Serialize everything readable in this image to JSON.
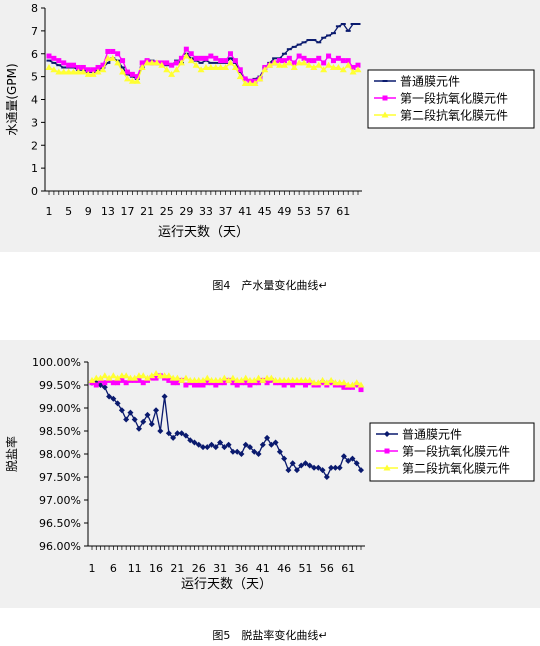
{
  "figures": [
    {
      "caption": "图4　产水量变化曲线↵"
    },
    {
      "caption": "图5　脱盐率变化曲线↵"
    }
  ],
  "colors": {
    "series_1": "#0a1a6e",
    "series_2": "#ff00ff",
    "series_3": "#ffff33"
  },
  "chart_data": [
    {
      "type": "line",
      "title": "",
      "xlabel": "运行天数（天）",
      "ylabel": "水通量(GPM)",
      "x": [
        1,
        2,
        3,
        4,
        5,
        6,
        7,
        8,
        9,
        10,
        11,
        12,
        13,
        14,
        15,
        16,
        17,
        18,
        19,
        20,
        21,
        22,
        23,
        24,
        25,
        26,
        27,
        28,
        29,
        30,
        31,
        32,
        33,
        34,
        35,
        36,
        37,
        38,
        39,
        40,
        41,
        42,
        43,
        44,
        45,
        46,
        47,
        48,
        49,
        50,
        51,
        52,
        53,
        54,
        55,
        56,
        57,
        58,
        59,
        60,
        61,
        62,
        63,
        64
      ],
      "xticks": [
        "1",
        "5",
        "9",
        "13",
        "17",
        "21",
        "25",
        "29",
        "33",
        "37",
        "41",
        "45",
        "49",
        "53",
        "57",
        "61"
      ],
      "yticks": [
        "0",
        "1",
        "2",
        "3",
        "4",
        "5",
        "6",
        "7",
        "8"
      ],
      "ylim": [
        0,
        8
      ],
      "legend_position": "right",
      "grid": false,
      "series": [
        {
          "name": "普通膜元件",
          "marker": "dash",
          "values": [
            5.7,
            5.6,
            5.5,
            5.4,
            5.4,
            5.4,
            5.3,
            5.3,
            5.2,
            5.2,
            5.3,
            5.4,
            5.6,
            5.8,
            5.7,
            5.4,
            5.1,
            5.0,
            4.9,
            5.4,
            5.7,
            5.7,
            5.6,
            5.6,
            5.5,
            5.5,
            5.7,
            5.6,
            6.0,
            5.8,
            5.7,
            5.6,
            5.7,
            5.6,
            5.6,
            5.6,
            5.6,
            5.8,
            5.6,
            5.2,
            4.9,
            4.8,
            4.9,
            5.0,
            5.4,
            5.6,
            5.8,
            5.8,
            6.0,
            6.2,
            6.3,
            6.4,
            6.5,
            6.6,
            6.6,
            6.5,
            6.7,
            6.8,
            6.9,
            7.2,
            7.3,
            7.0,
            7.3,
            7.3
          ]
        },
        {
          "name": "第一段抗氧化膜元件",
          "marker": "square",
          "values": [
            5.9,
            5.8,
            5.7,
            5.6,
            5.5,
            5.5,
            5.4,
            5.4,
            5.3,
            5.3,
            5.4,
            5.5,
            6.1,
            6.1,
            6.0,
            5.7,
            5.2,
            5.1,
            5.0,
            5.6,
            5.7,
            5.6,
            5.6,
            5.6,
            5.6,
            5.5,
            5.6,
            5.8,
            6.2,
            6.0,
            5.8,
            5.8,
            5.8,
            5.9,
            5.8,
            5.7,
            5.7,
            6.0,
            5.7,
            5.3,
            4.9,
            4.8,
            4.8,
            4.9,
            5.4,
            5.5,
            5.6,
            5.7,
            5.7,
            5.8,
            5.6,
            5.9,
            5.8,
            5.7,
            5.7,
            5.8,
            5.6,
            5.9,
            5.7,
            5.8,
            5.7,
            5.7,
            5.4,
            5.5
          ]
        },
        {
          "name": "第二段抗氧化膜元件",
          "marker": "triangle",
          "values": [
            5.4,
            5.3,
            5.2,
            5.2,
            5.2,
            5.2,
            5.2,
            5.2,
            5.1,
            5.1,
            5.2,
            5.3,
            5.8,
            5.8,
            5.6,
            5.2,
            4.9,
            4.8,
            4.8,
            5.4,
            5.6,
            5.6,
            5.6,
            5.5,
            5.3,
            5.1,
            5.3,
            5.6,
            5.9,
            5.7,
            5.5,
            5.3,
            5.4,
            5.4,
            5.4,
            5.4,
            5.4,
            5.6,
            5.4,
            5.0,
            4.7,
            4.7,
            4.7,
            4.9,
            5.3,
            5.5,
            5.6,
            5.5,
            5.5,
            5.6,
            5.4,
            5.6,
            5.6,
            5.5,
            5.4,
            5.5,
            5.3,
            5.5,
            5.4,
            5.4,
            5.3,
            5.5,
            5.2,
            5.3
          ]
        }
      ]
    },
    {
      "type": "line",
      "title": "",
      "xlabel": "运行天数（天）",
      "ylabel": "脱盐率",
      "x": [
        1,
        2,
        3,
        4,
        5,
        6,
        7,
        8,
        9,
        10,
        11,
        12,
        13,
        14,
        15,
        16,
        17,
        18,
        19,
        20,
        21,
        22,
        23,
        24,
        25,
        26,
        27,
        28,
        29,
        30,
        31,
        32,
        33,
        34,
        35,
        36,
        37,
        38,
        39,
        40,
        41,
        42,
        43,
        44,
        45,
        46,
        47,
        48,
        49,
        50,
        51,
        52,
        53,
        54,
        55,
        56,
        57,
        58,
        59,
        60,
        61,
        62,
        63,
        64
      ],
      "xticks": [
        "1",
        "6",
        "11",
        "16",
        "21",
        "26",
        "31",
        "36",
        "41",
        "46",
        "51",
        "56",
        "61"
      ],
      "yticks": [
        "96.00%",
        "96.50%",
        "97.00%",
        "97.50%",
        "98.00%",
        "98.50%",
        "99.00%",
        "99.50%",
        "100.00%"
      ],
      "ylim": [
        96,
        100
      ],
      "legend_position": "right",
      "grid": false,
      "series": [
        {
          "name": "普通膜元件",
          "marker": "diamond",
          "values": [
            99.55,
            99.55,
            99.5,
            99.45,
            99.25,
            99.2,
            99.1,
            98.95,
            98.75,
            98.9,
            98.75,
            98.55,
            98.7,
            98.85,
            98.65,
            98.95,
            98.5,
            99.25,
            98.45,
            98.35,
            98.45,
            98.45,
            98.4,
            98.3,
            98.25,
            98.2,
            98.15,
            98.15,
            98.2,
            98.15,
            98.25,
            98.15,
            98.2,
            98.05,
            98.05,
            98.0,
            98.2,
            98.15,
            98.05,
            98.0,
            98.2,
            98.35,
            98.2,
            98.25,
            98.05,
            97.9,
            97.65,
            97.8,
            97.65,
            97.75,
            97.8,
            97.75,
            97.7,
            97.7,
            97.65,
            97.5,
            97.7,
            97.7,
            97.7,
            97.95,
            97.85,
            97.9,
            97.8,
            97.65
          ]
        },
        {
          "name": "第一段抗氧化膜元件",
          "marker": "square",
          "values": [
            99.55,
            99.5,
            99.6,
            99.55,
            99.6,
            99.55,
            99.55,
            99.6,
            99.55,
            99.6,
            99.6,
            99.6,
            99.55,
            99.6,
            99.65,
            99.65,
            99.7,
            99.65,
            99.6,
            99.55,
            99.55,
            99.6,
            99.5,
            99.55,
            99.5,
            99.5,
            99.5,
            99.55,
            99.55,
            99.5,
            99.55,
            99.55,
            99.6,
            99.55,
            99.5,
            99.55,
            99.55,
            99.5,
            99.55,
            99.55,
            99.6,
            99.55,
            99.6,
            99.55,
            99.55,
            99.5,
            99.55,
            99.5,
            99.55,
            99.55,
            99.5,
            99.55,
            99.5,
            99.5,
            99.55,
            99.5,
            99.55,
            99.5,
            99.5,
            99.45,
            99.45,
            99.45,
            99.5,
            99.4
          ]
        },
        {
          "name": "第二段抗氧化膜元件",
          "marker": "triangle",
          "values": [
            99.6,
            99.65,
            99.65,
            99.7,
            99.65,
            99.7,
            99.65,
            99.7,
            99.7,
            99.65,
            99.65,
            99.7,
            99.7,
            99.65,
            99.7,
            99.75,
            99.7,
            99.7,
            99.7,
            99.65,
            99.65,
            99.6,
            99.65,
            99.6,
            99.6,
            99.6,
            99.6,
            99.65,
            99.6,
            99.6,
            99.6,
            99.65,
            99.6,
            99.65,
            99.6,
            99.6,
            99.65,
            99.6,
            99.6,
            99.65,
            99.6,
            99.65,
            99.65,
            99.6,
            99.6,
            99.6,
            99.6,
            99.6,
            99.6,
            99.6,
            99.6,
            99.6,
            99.55,
            99.55,
            99.6,
            99.55,
            99.6,
            99.55,
            99.55,
            99.55,
            99.5,
            99.5,
            99.55,
            99.5
          ]
        }
      ]
    }
  ]
}
